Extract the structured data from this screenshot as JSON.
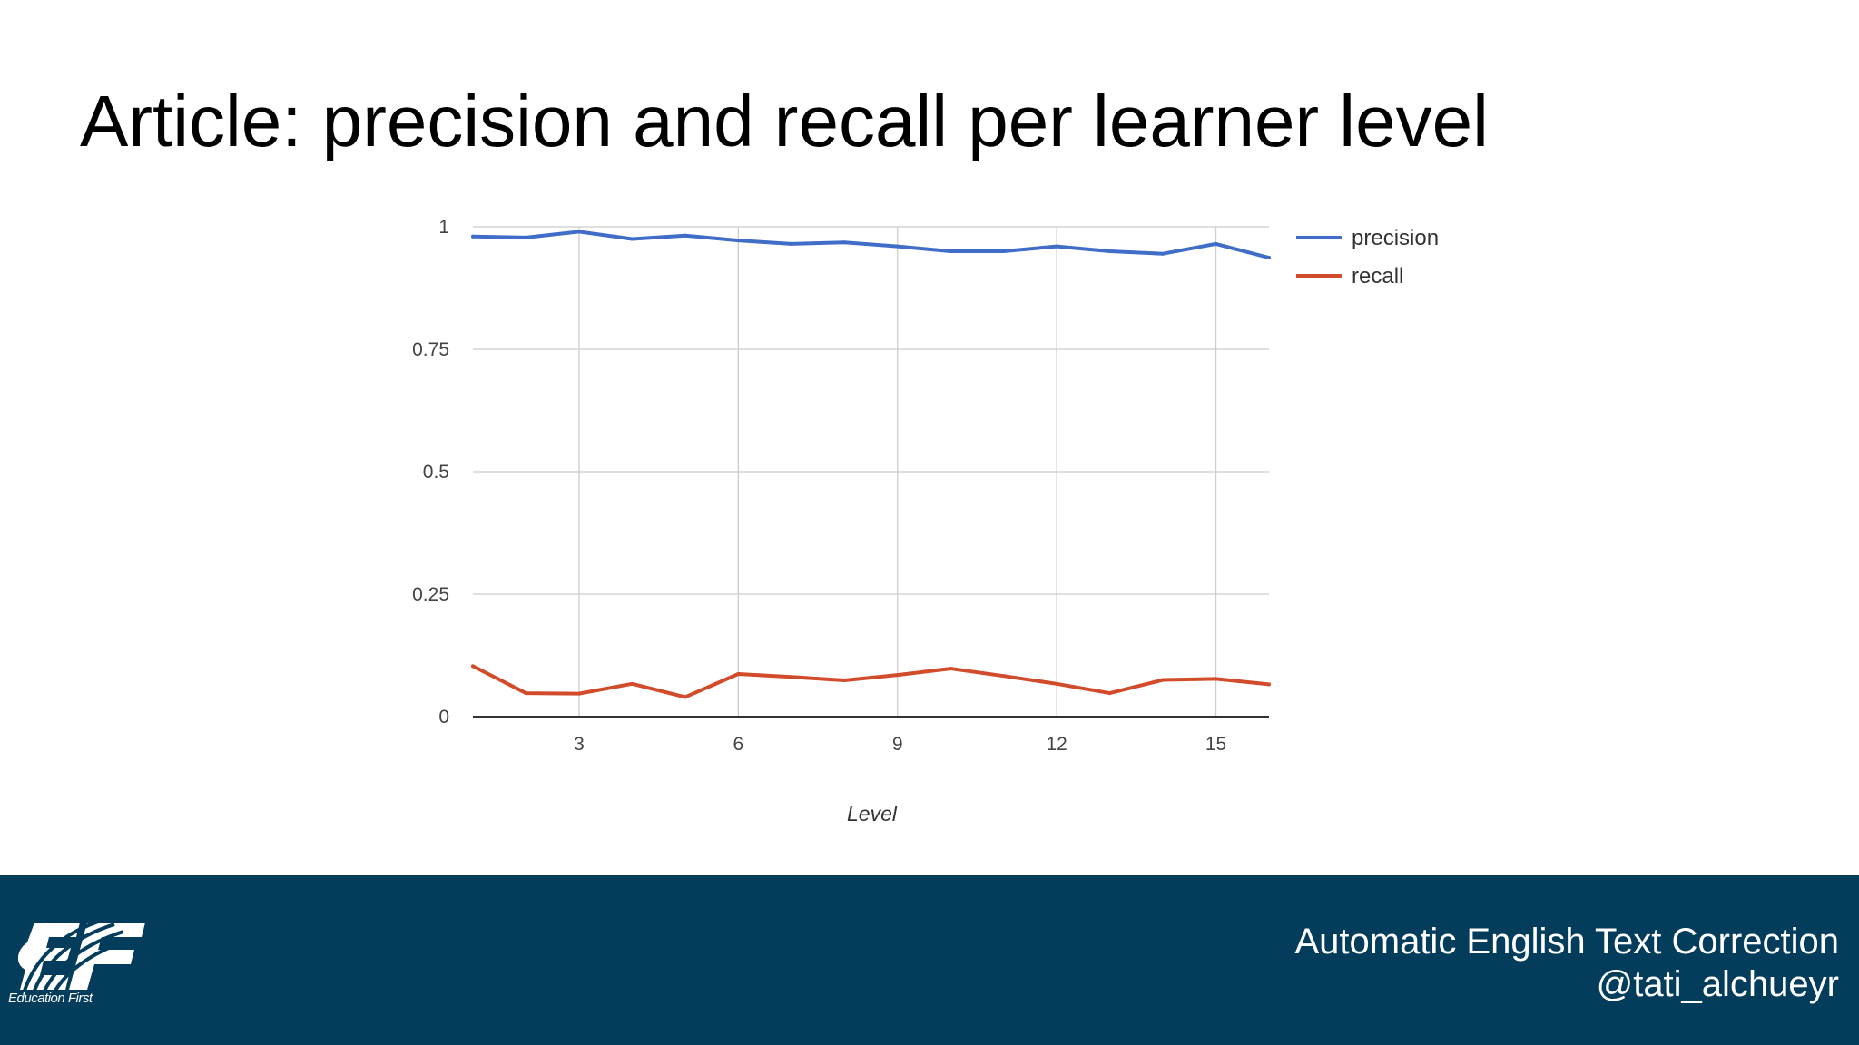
{
  "slide": {
    "title": "Article: precision and recall per learner level"
  },
  "chart_data": {
    "type": "line",
    "x": [
      1,
      2,
      3,
      4,
      5,
      6,
      7,
      8,
      9,
      10,
      11,
      12,
      13,
      14,
      15,
      16
    ],
    "series": [
      {
        "name": "precision",
        "color": "#3f6dc7",
        "values": [
          0.98,
          0.978,
          0.99,
          0.975,
          0.982,
          0.972,
          0.965,
          0.968,
          0.96,
          0.95,
          0.95,
          0.96,
          0.95,
          0.945,
          0.965,
          0.937
        ]
      },
      {
        "name": "recall",
        "color": "#d24b2a",
        "values": [
          0.103,
          0.048,
          0.047,
          0.067,
          0.04,
          0.087,
          0.081,
          0.074,
          0.085,
          0.098,
          0.083,
          0.067,
          0.048,
          0.075,
          0.077,
          0.066
        ]
      }
    ],
    "xlabel": "Level",
    "ylabel": "",
    "x_ticks": [
      "3",
      "6",
      "9",
      "12",
      "15"
    ],
    "y_ticks": [
      "0",
      "0.25",
      "0.5",
      "0.75",
      "1"
    ],
    "xlim": [
      1,
      16
    ],
    "ylim": [
      0,
      1
    ],
    "grid": true,
    "legend_position": "right"
  },
  "footer": {
    "background_color": "#043c5c",
    "logo_tagline": "Education First",
    "presentation_title": "Automatic English Text Correction",
    "author_handle": "@tati_alchueyr"
  }
}
